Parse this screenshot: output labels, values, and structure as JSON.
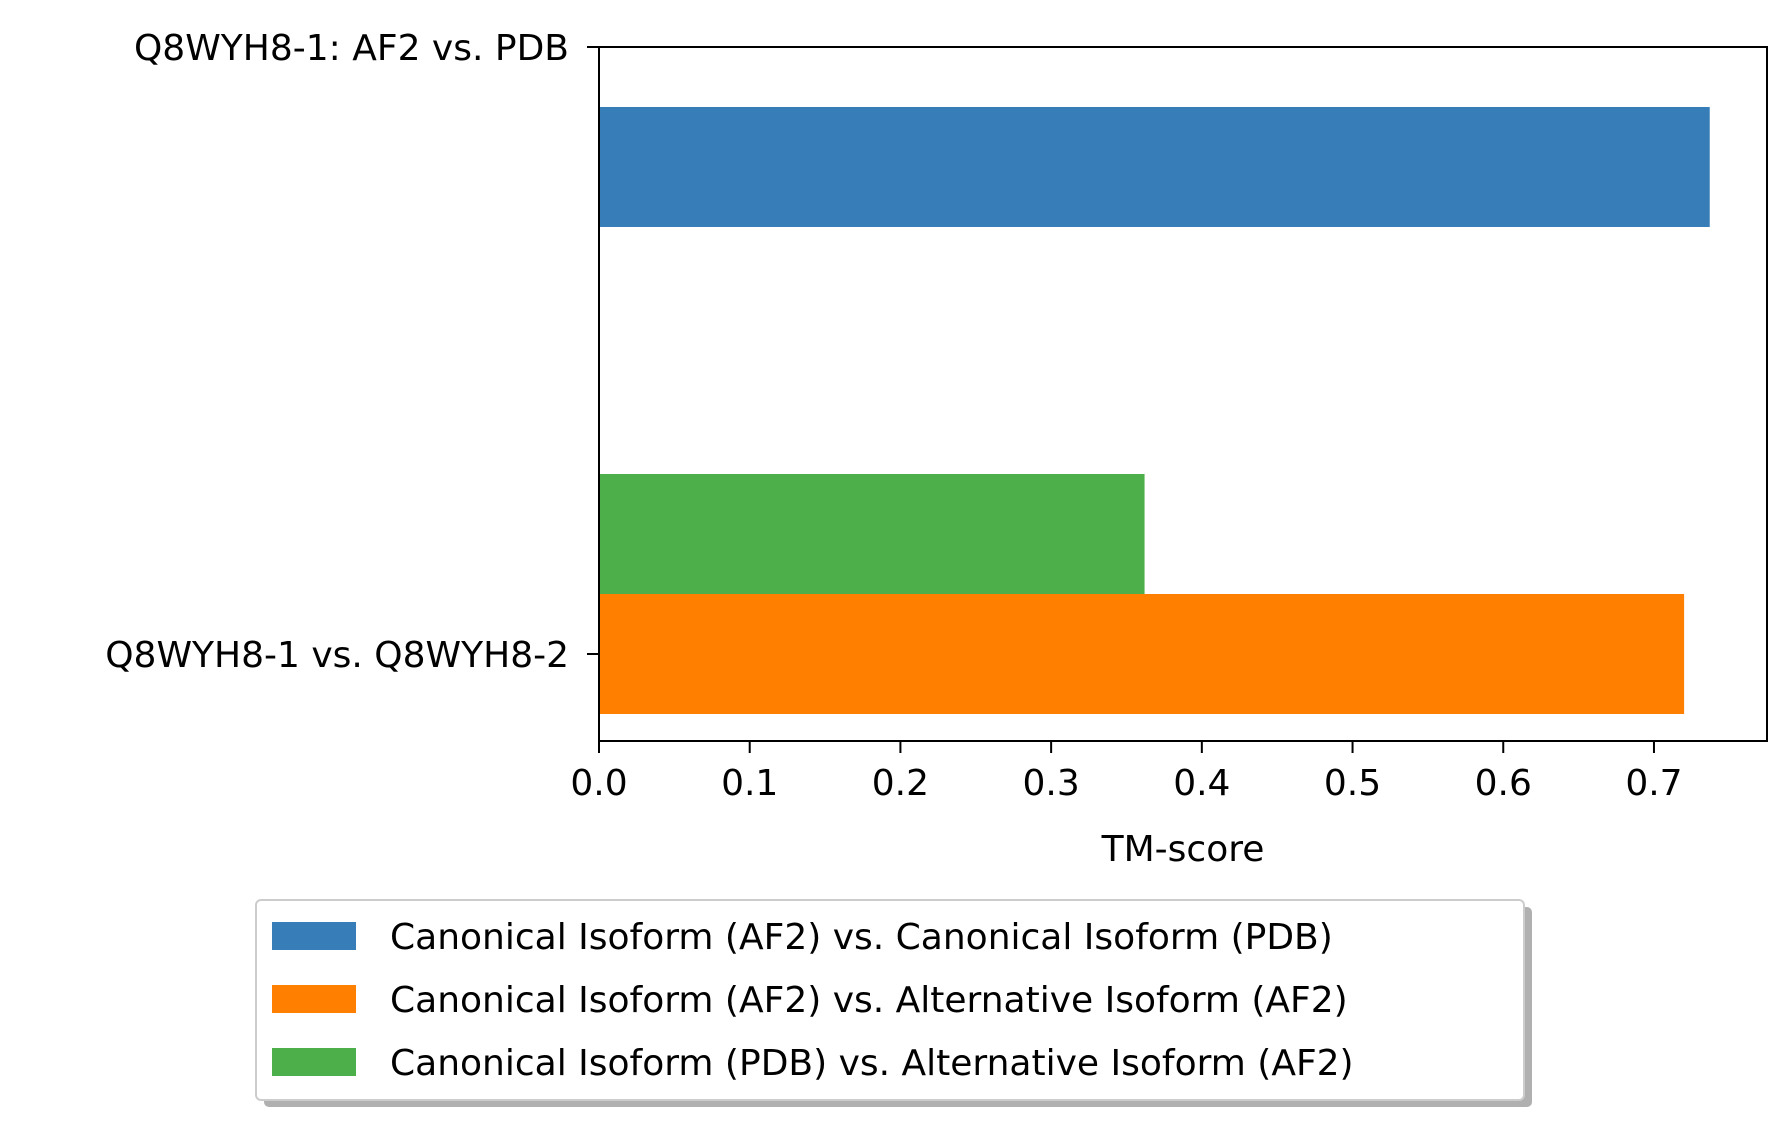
{
  "chart_data": {
    "type": "bar",
    "orientation": "horizontal",
    "title": "",
    "xlabel": "TM-score",
    "ylabel": "",
    "xlim": [
      0,
      0.775
    ],
    "xticks": [
      0.0,
      0.1,
      0.2,
      0.3,
      0.4,
      0.5,
      0.6,
      0.7
    ],
    "xtick_labels": [
      "0.0",
      "0.1",
      "0.2",
      "0.3",
      "0.4",
      "0.5",
      "0.6",
      "0.7"
    ],
    "categories": [
      "Q8WYH8-1: AF2 vs. PDB",
      "Q8WYH8-1 vs. Q8WYH8-2"
    ],
    "series": [
      {
        "name": "Canonical Isoform (AF2) vs. Canonical Isoform (PDB)",
        "color": "#377eb8",
        "values": [
          0.737,
          null
        ]
      },
      {
        "name": "Canonical Isoform (AF2) vs. Alternative Isoform (AF2)",
        "color": "#ff7f00",
        "values": [
          null,
          0.72
        ]
      },
      {
        "name": "Canonical Isoform (PDB) vs. Alternative Isoform (AF2)",
        "color": "#4daf4a",
        "values": [
          null,
          0.362
        ]
      }
    ],
    "grid": false,
    "legend_position": "bottom-center"
  }
}
